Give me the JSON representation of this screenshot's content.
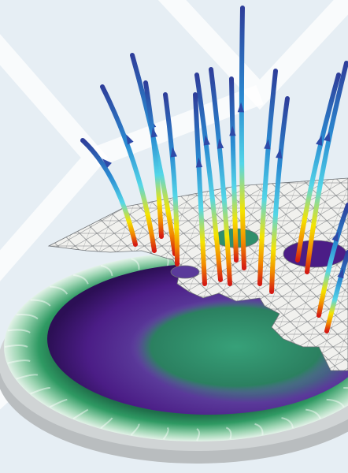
{
  "scene": {
    "background_color": "#e6eef4",
    "bg_pattern_color": "#ffffff",
    "rim_color": "#2f9a63",
    "rim_highlight": "#d8eee0",
    "bowl_purple": "#4b1d86",
    "bowl_violet": "#7b3fb8",
    "bowl_center_green": "#2e8a68",
    "base_color": "#b9bdbf",
    "mesh_fill": "#f1f1ee",
    "mesh_line": "#6f7377",
    "streamline_palette": [
      "#d41b12",
      "#f28a00",
      "#f5e400",
      "#54d6e8",
      "#2a8bd2",
      "#2e3e9a"
    ],
    "streamline_count": 16
  }
}
